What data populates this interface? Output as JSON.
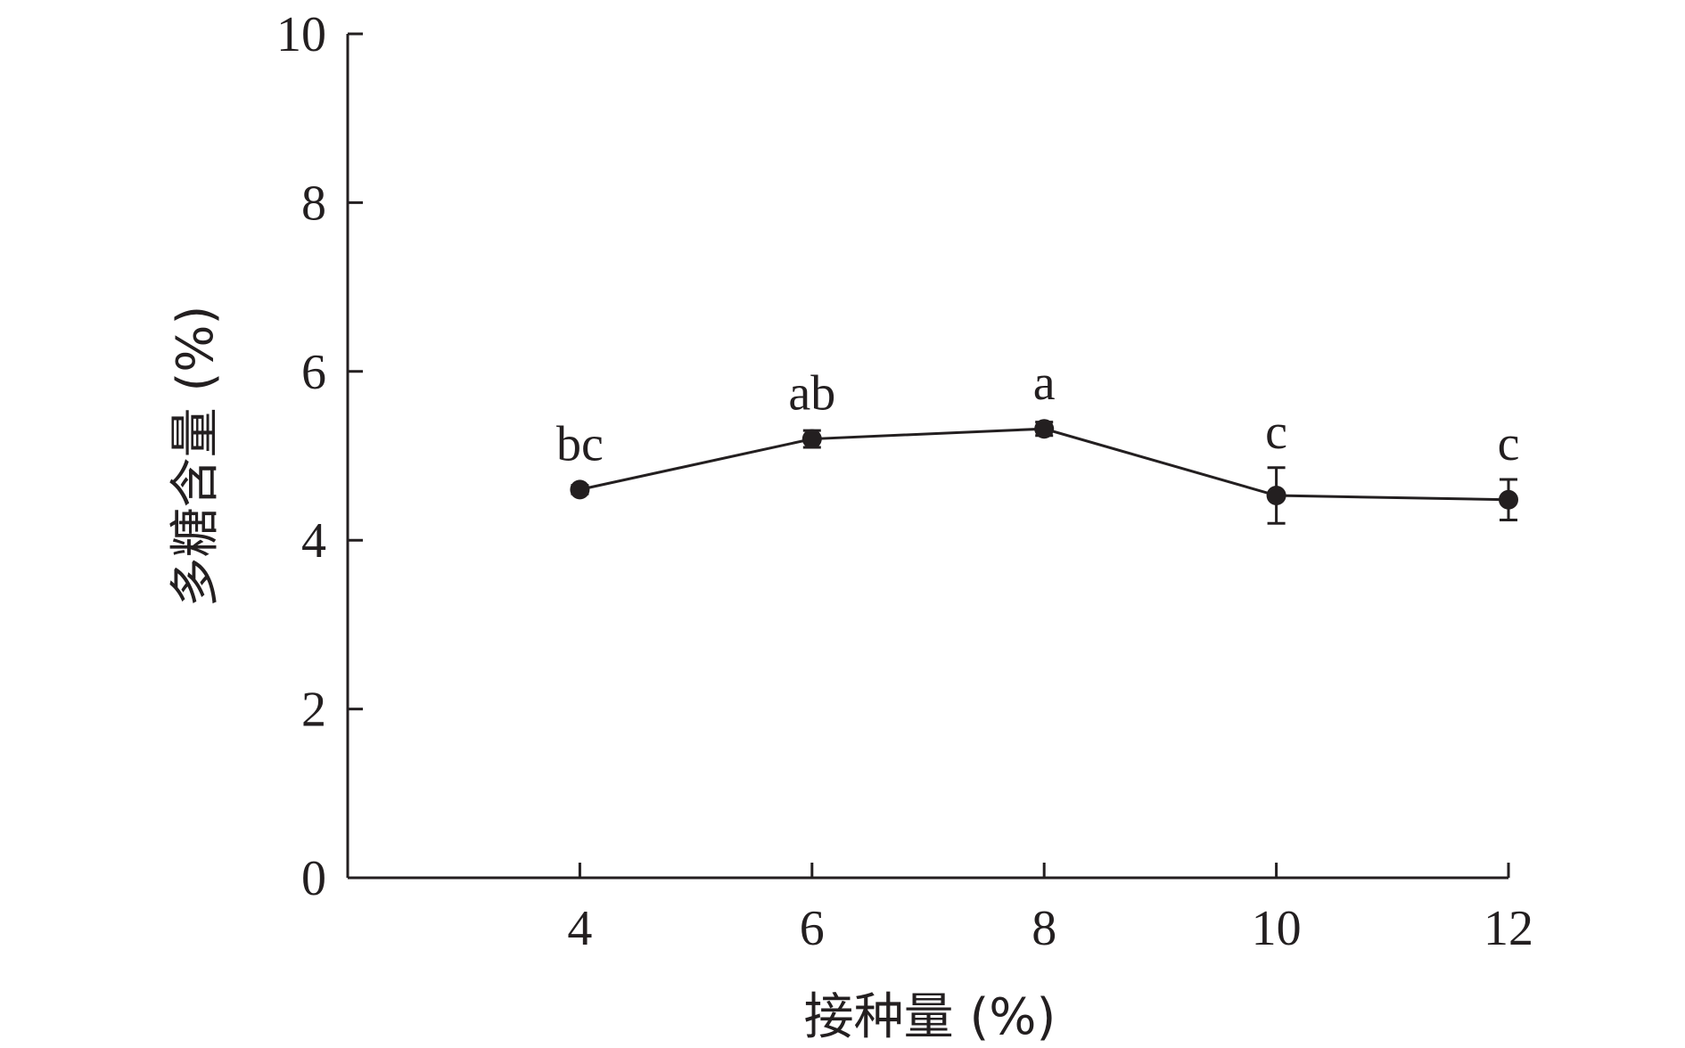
{
  "chart_data": {
    "type": "line",
    "title": "",
    "xlabel": "接种量 (%)",
    "ylabel": "多糖含量 (%)",
    "x": [
      4,
      6,
      8,
      10,
      12
    ],
    "x_ticks": [
      "4",
      "6",
      "8",
      "10",
      "12"
    ],
    "xlim": [
      2,
      12
    ],
    "ylim": [
      0,
      10
    ],
    "y_ticks": [
      "0",
      "2",
      "4",
      "6",
      "8",
      "10"
    ],
    "series": [
      {
        "values": [
          4.6,
          5.2,
          5.32,
          4.53,
          4.48
        ],
        "errors": [
          0.05,
          0.1,
          0.08,
          0.33,
          0.24
        ],
        "labels": [
          "bc",
          "ab",
          "a",
          "c",
          "c"
        ],
        "color": "#231f20"
      }
    ],
    "grid": false,
    "legend": "none"
  }
}
